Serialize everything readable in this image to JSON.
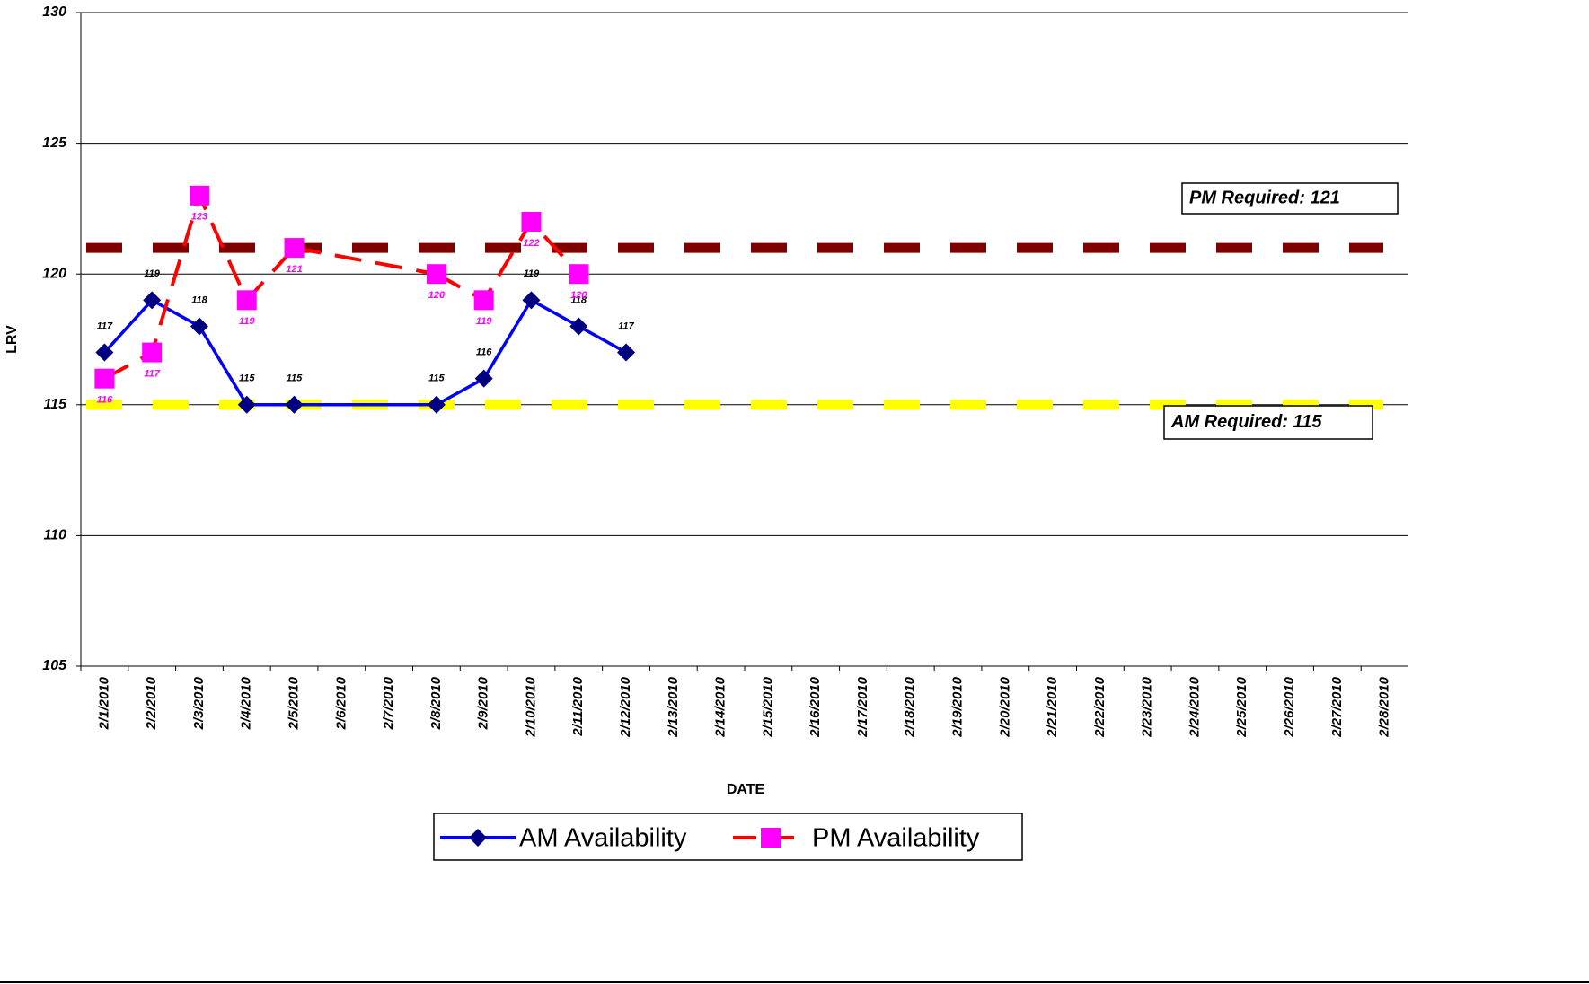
{
  "chart_data": {
    "type": "line",
    "y_label": "LRV",
    "x_label": "DATE",
    "categories": [
      "2/1/2010",
      "2/2/2010",
      "2/3/2010",
      "2/4/2010",
      "2/5/2010",
      "2/6/2010",
      "2/7/2010",
      "2/8/2010",
      "2/9/2010",
      "2/10/2010",
      "2/11/2010",
      "2/12/2010",
      "2/13/2010",
      "2/14/2010",
      "2/15/2010",
      "2/16/2010",
      "2/17/2010",
      "2/18/2010",
      "2/19/2010",
      "2/20/2010",
      "2/21/2010",
      "2/22/2010",
      "2/23/2010",
      "2/24/2010",
      "2/25/2010",
      "2/26/2010",
      "2/27/2010",
      "2/28/2010"
    ],
    "series": [
      {
        "name": "AM Availability",
        "color": "#0000ff",
        "marker_color": "#000080",
        "marker": "diamond",
        "line_style": "solid",
        "label_color": "#000000",
        "label_position": "above",
        "values": [
          117,
          119,
          118,
          115,
          115,
          null,
          null,
          115,
          116,
          119,
          118,
          117,
          null,
          null,
          null,
          null,
          null,
          null,
          null,
          null,
          null,
          null,
          null,
          null,
          null,
          null,
          null,
          null
        ]
      },
      {
        "name": "PM Availability",
        "color": "#ff0000",
        "marker_color": "#ff00ff",
        "marker": "square",
        "line_style": "dashed",
        "label_color": "#ff00ff",
        "label_position": "below",
        "values": [
          116,
          117,
          123,
          119,
          121,
          null,
          null,
          120,
          119,
          122,
          120,
          null,
          null,
          null,
          null,
          null,
          null,
          null,
          null,
          null,
          null,
          null,
          null,
          null,
          null,
          null,
          null,
          null
        ]
      }
    ],
    "connect_gaps": true,
    "reference_lines": [
      {
        "label": "PM Required: 121",
        "value": 121,
        "color": "#800000"
      },
      {
        "label": "AM Required: 115",
        "value": 115,
        "color": "#ffff00"
      }
    ],
    "ylim": [
      105,
      130
    ],
    "yticks": [
      105,
      110,
      115,
      120,
      125,
      130
    ],
    "grid": true,
    "legend": "bottom"
  }
}
